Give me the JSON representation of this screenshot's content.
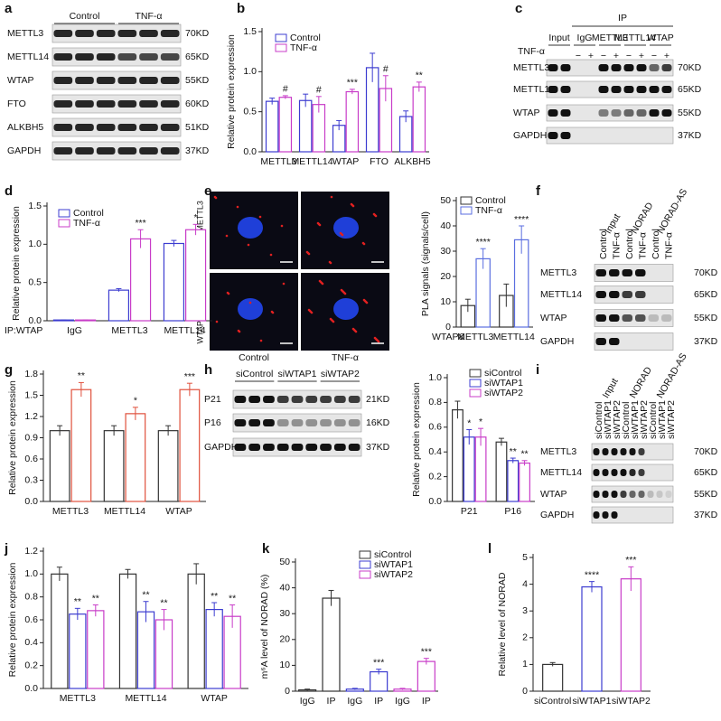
{
  "panel_labels": [
    "a",
    "b",
    "c",
    "d",
    "e",
    "f",
    "g",
    "h",
    "i",
    "j",
    "k",
    "l"
  ],
  "blots": [
    {
      "groups": [
        "Control",
        "TNF-α"
      ],
      "rows": [
        {
          "protein": "METTL3",
          "size": "70KD"
        },
        {
          "protein": "METTL14",
          "size": "65KD"
        },
        {
          "protein": "WTAP",
          "size": "55KD"
        },
        {
          "protein": "FTO",
          "size": "60KD"
        },
        {
          "protein": "ALKBH5",
          "size": "51KD"
        },
        {
          "protein": "GAPDH",
          "size": "37KD"
        }
      ]
    },
    {
      "groups": [
        "Input",
        "IgG",
        "METTL3",
        "METTL14",
        "WTAP"
      ],
      "top_group": "IP",
      "treatment": "TNF-α",
      "signs": [
        "−",
        "+",
        "−",
        "+",
        "−",
        "+",
        "−",
        "+"
      ],
      "rows": [
        {
          "protein": "METTL3",
          "size": "70KD"
        },
        {
          "protein": "METTL14",
          "size": "65KD"
        },
        {
          "protein": "WTAP",
          "size": "55KD"
        },
        {
          "protein": "GAPDH",
          "size": "37KD"
        }
      ]
    },
    {
      "groups": [
        "Input",
        "NORAD",
        "NORAD-AS"
      ],
      "lanes": [
        "Control",
        "TNF-α",
        "Control",
        "TNF-α",
        "Control",
        "TNF-α"
      ],
      "rows": [
        {
          "protein": "METTL3",
          "size": "70KD"
        },
        {
          "protein": "METTL14",
          "size": "65KD"
        },
        {
          "protein": "WTAP",
          "size": "55KD"
        },
        {
          "protein": "GAPDH",
          "size": "37KD"
        }
      ]
    },
    {
      "groups": [
        "siControl",
        "siWTAP1",
        "siWTAP2"
      ],
      "rows": [
        {
          "protein": "P21",
          "size": "21KD"
        },
        {
          "protein": "P16",
          "size": "16KD"
        },
        {
          "protein": "GAPDH",
          "size": "37KD"
        }
      ]
    },
    {
      "groups": [
        "Input",
        "NORAD",
        "NORAD-AS"
      ],
      "lanes": [
        "siControl",
        "siWTAP1",
        "siWTAP2",
        "siControl",
        "siWTAP1",
        "siWTAP2",
        "siControl",
        "siWTAP1",
        "siWTAP2"
      ],
      "rows": [
        {
          "protein": "METTL3",
          "size": "70KD"
        },
        {
          "protein": "METTL14",
          "size": "65KD"
        },
        {
          "protein": "WTAP",
          "size": "55KD"
        },
        {
          "protein": "GAPDH",
          "size": "37KD"
        }
      ]
    }
  ],
  "images": {
    "row_labels": [
      "WTAP&METTL3",
      "WTAP&METTL14"
    ],
    "col_labels": [
      "Control",
      "TNF-α"
    ]
  },
  "chart_data": [
    {
      "type": "bar",
      "ylabel": "Relative protein expression",
      "categories": [
        "METTL3",
        "METTL14",
        "WTAP",
        "FTO",
        "ALKBH5"
      ],
      "ylim": [
        0,
        1.5
      ],
      "yticks": [
        {
          "value": 0,
          "label": "0.0"
        },
        0.5,
        {
          "value": 1,
          "label": "1.0"
        },
        1.5
      ],
      "series": [
        {
          "name": "Control",
          "color": "#3c3cd0",
          "values": [
            0.63,
            0.64,
            0.33,
            1.05,
            0.44
          ],
          "errors": [
            0.04,
            0.08,
            0.06,
            0.18,
            0.07
          ]
        },
        {
          "name": "TNF-α",
          "color": "#c83cc8",
          "values": [
            0.68,
            0.59,
            0.75,
            0.79,
            0.81
          ],
          "errors": [
            0.02,
            0.1,
            0.03,
            0.16,
            0.06
          ],
          "annotations": [
            "#",
            "#",
            "***",
            "#",
            "**"
          ]
        }
      ]
    },
    {
      "type": "bar",
      "ylabel": "Relative protein expression",
      "category_prefix": "IP:WTAP",
      "categories": [
        "IgG",
        "METTL3",
        "METTL14"
      ],
      "ylim": [
        0,
        1.5
      ],
      "yticks": [
        {
          "value": 0,
          "label": "0.0"
        },
        0.5,
        {
          "value": 1,
          "label": "1.0"
        },
        1.5
      ],
      "series": [
        {
          "name": "Control",
          "color": "#3c3cd0",
          "values": [
            0.01,
            0.4,
            1.01
          ],
          "errors": [
            0,
            0.02,
            0.04
          ]
        },
        {
          "name": "TNF-α",
          "color": "#c83cc8",
          "values": [
            0.01,
            1.07,
            1.19
          ],
          "errors": [
            0,
            0.12,
            0.07
          ],
          "annotations": [
            null,
            "***",
            "*"
          ]
        }
      ]
    },
    {
      "type": "bar",
      "ylabel": "PLA signals (signals/cell)",
      "category_prefix": "WTAP&",
      "categories": [
        "METTL3",
        "METTL14"
      ],
      "ylim": [
        0,
        50
      ],
      "yticks": [
        0,
        10,
        20,
        30,
        40,
        50
      ],
      "series": [
        {
          "name": "Control",
          "color": "#333333",
          "values": [
            8.5,
            12.5
          ],
          "errors": [
            2.5,
            4.5
          ]
        },
        {
          "name": "TNF-α",
          "color": "#5a6ee0",
          "values": [
            27,
            34.5
          ],
          "errors": [
            4,
            5.5
          ],
          "annotations": [
            "****",
            "****"
          ]
        }
      ]
    },
    {
      "type": "bar",
      "ylabel": "Relative protein expression",
      "categories": [
        "METTL3",
        "METTL14",
        "WTAP"
      ],
      "ylim": [
        0,
        1.8
      ],
      "yticks": [
        {
          "value": 0,
          "label": "0.0"
        },
        0.3,
        0.6,
        0.9,
        1.2,
        1.5,
        1.8
      ],
      "series": [
        {
          "color": "#333333",
          "values": [
            1,
            1,
            1
          ],
          "errors": [
            0.07,
            0.07,
            0.07
          ]
        },
        {
          "color": "#e0503c",
          "values": [
            1.58,
            1.24,
            1.58
          ],
          "errors": [
            0.1,
            0.09,
            0.09
          ],
          "annotations": [
            "**",
            "*",
            "***"
          ]
        }
      ]
    },
    {
      "type": "bar",
      "ylabel": "Relative protein expression",
      "categories": [
        "P21",
        "P16"
      ],
      "ylim": [
        0,
        1
      ],
      "yticks": [
        {
          "value": 0,
          "label": "0.0"
        },
        0.2,
        0.4,
        0.6,
        0.8,
        {
          "value": 1,
          "label": "1.0"
        }
      ],
      "series": [
        {
          "name": "siControl",
          "color": "#333333",
          "values": [
            0.74,
            0.48
          ],
          "errors": [
            0.07,
            0.03
          ]
        },
        {
          "name": "siWTAP1",
          "color": "#3c3cd0",
          "values": [
            0.52,
            0.33
          ],
          "errors": [
            0.06,
            0.02
          ],
          "annotations": [
            "*",
            "**"
          ]
        },
        {
          "name": "siWTAP2",
          "color": "#c83cc8",
          "values": [
            0.52,
            0.31
          ],
          "errors": [
            0.07,
            0.02
          ],
          "annotations": [
            "*",
            "**"
          ]
        }
      ]
    },
    {
      "type": "bar",
      "ylabel": "Relative protein expression",
      "categories": [
        "METTL3",
        "METTL14",
        "WTAP"
      ],
      "ylim": [
        0,
        1.2
      ],
      "yticks": [
        {
          "value": 0,
          "label": "0.0"
        },
        0.2,
        0.4,
        0.6,
        0.8,
        {
          "value": 1,
          "label": "1.0"
        },
        1.2
      ],
      "series": [
        {
          "name": "siControl",
          "color": "#333333",
          "values": [
            1,
            1,
            1
          ],
          "errors": [
            0.06,
            0.04,
            0.09
          ]
        },
        {
          "name": "siWTAP1",
          "color": "#3c3cd0",
          "values": [
            0.65,
            0.67,
            0.69
          ],
          "errors": [
            0.05,
            0.09,
            0.06
          ],
          "annotations": [
            "**",
            "**",
            "**"
          ]
        },
        {
          "name": "siWTAP2",
          "color": "#c83cc8",
          "values": [
            0.68,
            0.6,
            0.63
          ],
          "errors": [
            0.05,
            0.09,
            0.1
          ],
          "annotations": [
            "**",
            "**",
            "**"
          ]
        }
      ]
    },
    {
      "type": "bar",
      "ylabel": "m⁶A level of NORAD (%)",
      "categories": [
        "IgG",
        "IP",
        "IgG",
        "IP",
        "IgG",
        "IP"
      ],
      "ylim": [
        0,
        50
      ],
      "yticks": [
        0,
        10,
        20,
        30,
        40,
        50
      ],
      "series": [
        {
          "name": "siControl",
          "color": "#333333",
          "values": [
            0.5,
            36,
            null,
            null,
            null,
            null
          ],
          "errors": [
            0.3,
            3,
            null,
            null,
            null,
            null
          ]
        },
        {
          "name": "siWTAP1",
          "color": "#3c3cd0",
          "values": [
            null,
            null,
            0.8,
            7.5,
            null,
            null
          ],
          "errors": [
            null,
            null,
            0.3,
            1,
            null,
            null
          ],
          "annotations": [
            null,
            null,
            null,
            "***",
            null,
            null
          ]
        },
        {
          "name": "siWTAP2",
          "color": "#c83cc8",
          "values": [
            null,
            null,
            null,
            null,
            0.8,
            11.5
          ],
          "errors": [
            null,
            null,
            null,
            null,
            0.3,
            1.2
          ],
          "annotations": [
            null,
            null,
            null,
            null,
            null,
            "***"
          ]
        }
      ]
    },
    {
      "type": "bar",
      "ylabel": "Relative level of NORAD",
      "categories": [
        "siControl",
        "siWTAP1",
        "siWTAP2"
      ],
      "ylim": [
        0,
        5
      ],
      "yticks": [
        0,
        1,
        2,
        3,
        4,
        5
      ],
      "values": [
        1,
        3.9,
        4.2
      ],
      "errors": [
        0.07,
        0.2,
        0.45
      ],
      "colors": [
        "#333333",
        "#3c3cd0",
        "#c83cc8"
      ],
      "annotations": [
        null,
        "****",
        "***"
      ]
    }
  ]
}
